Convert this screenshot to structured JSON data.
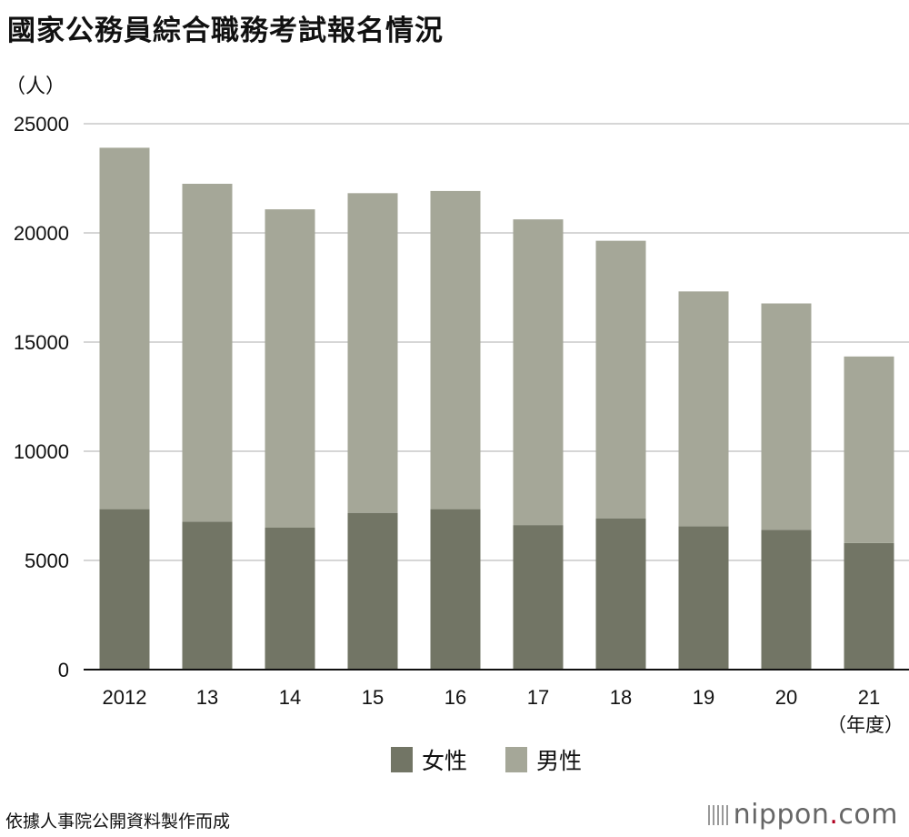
{
  "header": {
    "title": "國家公務員綜合職務考試報名情況"
  },
  "footer": {
    "source": "依據人事院公開資料製作而成",
    "brand": "nippon",
    "brand_dot": ".",
    "brand_suffix": "com"
  },
  "colors": {
    "female": "#727565",
    "male": "#a5a798",
    "grid": "#c8c8c8",
    "axis": "#111111"
  },
  "chart_data": {
    "type": "bar",
    "stacked": true,
    "categories": [
      "2012",
      "13",
      "14",
      "15",
      "16",
      "17",
      "18",
      "19",
      "20",
      "21"
    ],
    "x_unit_label": "（年度）",
    "y_unit_label": "（人）",
    "ylim": [
      0,
      25000
    ],
    "yticks": [
      0,
      5000,
      10000,
      15000,
      20000,
      25000
    ],
    "grid": true,
    "legend_position": "bottom-center",
    "series": [
      {
        "name": "女性",
        "values": [
          7350,
          6780,
          6500,
          7180,
          7350,
          6620,
          6930,
          6560,
          6400,
          5800
        ]
      },
      {
        "name": "男性",
        "values": [
          16550,
          15470,
          14580,
          14640,
          14570,
          14000,
          12710,
          10760,
          10370,
          8540
        ]
      }
    ]
  }
}
